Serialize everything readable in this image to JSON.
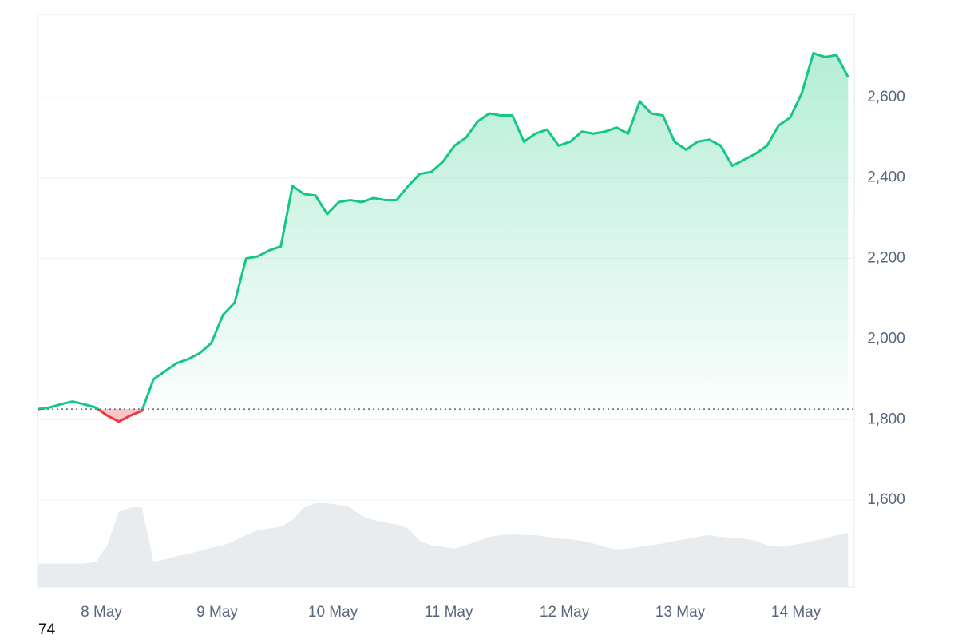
{
  "chart_data": {
    "type": "line",
    "xlim": [
      7.448,
      14.503
    ],
    "xticks": [
      {
        "value": 8,
        "label": "8 May"
      },
      {
        "value": 9,
        "label": "9 May"
      },
      {
        "value": 10,
        "label": "10 May"
      },
      {
        "value": 11,
        "label": "11 May"
      },
      {
        "value": 12,
        "label": "12 May"
      },
      {
        "value": 13,
        "label": "13 May"
      },
      {
        "value": 14,
        "label": "14 May"
      }
    ],
    "ylim": [
      1384,
      2806
    ],
    "yticks": [
      {
        "value": 1600,
        "label": "1,600"
      },
      {
        "value": 1800,
        "label": "1,800"
      },
      {
        "value": 2000,
        "label": "2,000"
      },
      {
        "value": 2200,
        "label": "2,200"
      },
      {
        "value": 2400,
        "label": "2,400"
      },
      {
        "value": 2600,
        "label": "2,600"
      }
    ],
    "grid": true,
    "baseline": 1826,
    "up_color": "#16c784",
    "down_color": "#ea3943",
    "x": [
      7.45,
      7.55,
      7.65,
      7.75,
      7.85,
      7.95,
      8.05,
      8.15,
      8.25,
      8.35,
      8.45,
      8.55,
      8.65,
      8.75,
      8.85,
      8.95,
      9.05,
      9.15,
      9.25,
      9.35,
      9.45,
      9.55,
      9.65,
      9.75,
      9.85,
      9.95,
      10.05,
      10.15,
      10.25,
      10.35,
      10.45,
      10.55,
      10.65,
      10.75,
      10.85,
      10.95,
      11.05,
      11.15,
      11.25,
      11.35,
      11.45,
      11.55,
      11.65,
      11.75,
      11.85,
      11.95,
      12.05,
      12.15,
      12.25,
      12.35,
      12.45,
      12.55,
      12.65,
      12.75,
      12.85,
      12.95,
      13.05,
      13.15,
      13.25,
      13.35,
      13.45,
      13.55,
      13.65,
      13.75,
      13.85,
      13.95,
      14.05,
      14.15,
      14.25,
      14.35,
      14.45
    ],
    "values": [
      1826,
      1830,
      1838,
      1845,
      1838,
      1830,
      1810,
      1795,
      1810,
      1822,
      1900,
      1920,
      1940,
      1950,
      1965,
      1990,
      2060,
      2090,
      2200,
      2205,
      2220,
      2230,
      2380,
      2360,
      2356,
      2310,
      2340,
      2345,
      2340,
      2350,
      2345,
      2345,
      2380,
      2410,
      2415,
      2440,
      2480,
      2500,
      2540,
      2560,
      2555,
      2555,
      2490,
      2510,
      2520,
      2480,
      2490,
      2515,
      2510,
      2515,
      2525,
      2510,
      2590,
      2560,
      2555,
      2490,
      2470,
      2490,
      2495,
      2480,
      2430,
      2445,
      2460,
      2480,
      2530,
      2550,
      2610,
      2710,
      2700,
      2705,
      2650
    ],
    "volume": {
      "color": "#e9ecef",
      "values": [
        28,
        28,
        28,
        28,
        28,
        30,
        50,
        90,
        95,
        95,
        30,
        33,
        37,
        40,
        43,
        47,
        50,
        55,
        62,
        68,
        70,
        72,
        80,
        95,
        100,
        100,
        98,
        95,
        85,
        80,
        77,
        75,
        70,
        55,
        50,
        48,
        46,
        50,
        55,
        60,
        62,
        63,
        62,
        62,
        60,
        58,
        57,
        55,
        52,
        48,
        45,
        46,
        48,
        50,
        52,
        55,
        57,
        60,
        62,
        60,
        58,
        58,
        55,
        50,
        48,
        50,
        52,
        55,
        58,
        62,
        65
      ]
    },
    "footer_text": "74"
  }
}
